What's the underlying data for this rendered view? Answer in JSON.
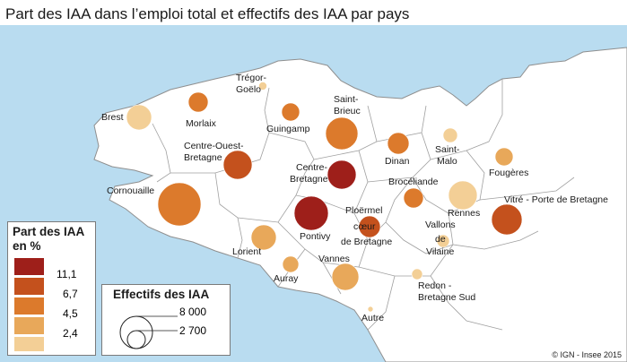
{
  "title": "Part des IAA dans l’emploi total et effectifs des IAA par pays",
  "colors": {
    "sea": "#b9dcf0",
    "land": "#ffffff",
    "border": "#8f8f8f",
    "classes": [
      "#9e1f1a",
      "#c4511d",
      "#dc7a2c",
      "#e8a85a",
      "#f3cf96"
    ]
  },
  "legend_share": {
    "title_line1": "Part des IAA",
    "title_line2": "en %",
    "breaks": [
      "11,1",
      "6,7",
      "4,5",
      "2,4"
    ]
  },
  "legend_size": {
    "title": "Effectifs des IAA",
    "values": [
      "8 000",
      "2 700"
    ]
  },
  "pays": [
    {
      "name": "Tregor-Goëlo",
      "class": 4
    },
    {
      "name": "Brest",
      "class": 4
    },
    {
      "name": "Morlaix",
      "class": 2
    },
    {
      "name": "Guingamp",
      "class": 2
    },
    {
      "name": "Saint-Brieuc",
      "class": 2
    },
    {
      "name": "Centre-Ouest-Bretagne",
      "class": 1
    },
    {
      "name": "Dinan",
      "class": 2
    },
    {
      "name": "Saint-Malo",
      "class": 4
    },
    {
      "name": "Centre-Bretagne",
      "class": 0
    },
    {
      "name": "Fougères",
      "class": 3
    },
    {
      "name": "Cornouaille",
      "class": 2
    },
    {
      "name": "Brocéliande",
      "class": 2
    },
    {
      "name": "Rennes",
      "class": 4
    },
    {
      "name": "Vitré - Porte de Bretagne",
      "class": 1
    },
    {
      "name": "Pontivy",
      "class": 0
    },
    {
      "name": "Ploërmel cœur de Bretagne",
      "class": 1
    },
    {
      "name": "Lorient",
      "class": 3
    },
    {
      "name": "Vallons de Vilaine",
      "class": 4
    },
    {
      "name": "Auray",
      "class": 3
    },
    {
      "name": "Vannes",
      "class": 3
    },
    {
      "name": "Redon - Bretagne Sud",
      "class": 4
    },
    {
      "name": "Autre",
      "class": 4
    }
  ],
  "labels": {
    "tregor1": "Trégor-",
    "tregor2": "Goëlo",
    "brest": "Brest",
    "morlaix": "Morlaix",
    "guingamp": "Guingamp",
    "stbrieuc1": "Saint-",
    "stbrieuc2": "Brieuc",
    "cob1": "Centre-Ouest-",
    "cob2": "Bretagne",
    "dinan": "Dinan",
    "stmalo1": "Saint-",
    "stmalo2": "Malo",
    "cb1": "Centre-",
    "cb2": "Bretagne",
    "fougeres": "Fougères",
    "cornouaille": "Cornouaille",
    "broceliande": "Brocéliande",
    "rennes": "Rennes",
    "vitre": "Vitré - Porte de Bretagne",
    "pontivy": "Pontivy",
    "ploermel1": "Ploërmel",
    "ploermel2": "cœur",
    "ploermel3": "de Bretagne",
    "lorient": "Lorient",
    "vallons1": "Vallons",
    "vallons2": "de",
    "vallons3": "Vilaine",
    "auray": "Auray",
    "vannes": "Vannes",
    "redon1": "Redon -",
    "redon2": "Bretagne Sud",
    "autre": "Autre"
  },
  "copyright": "© IGN - Insee 2015"
}
